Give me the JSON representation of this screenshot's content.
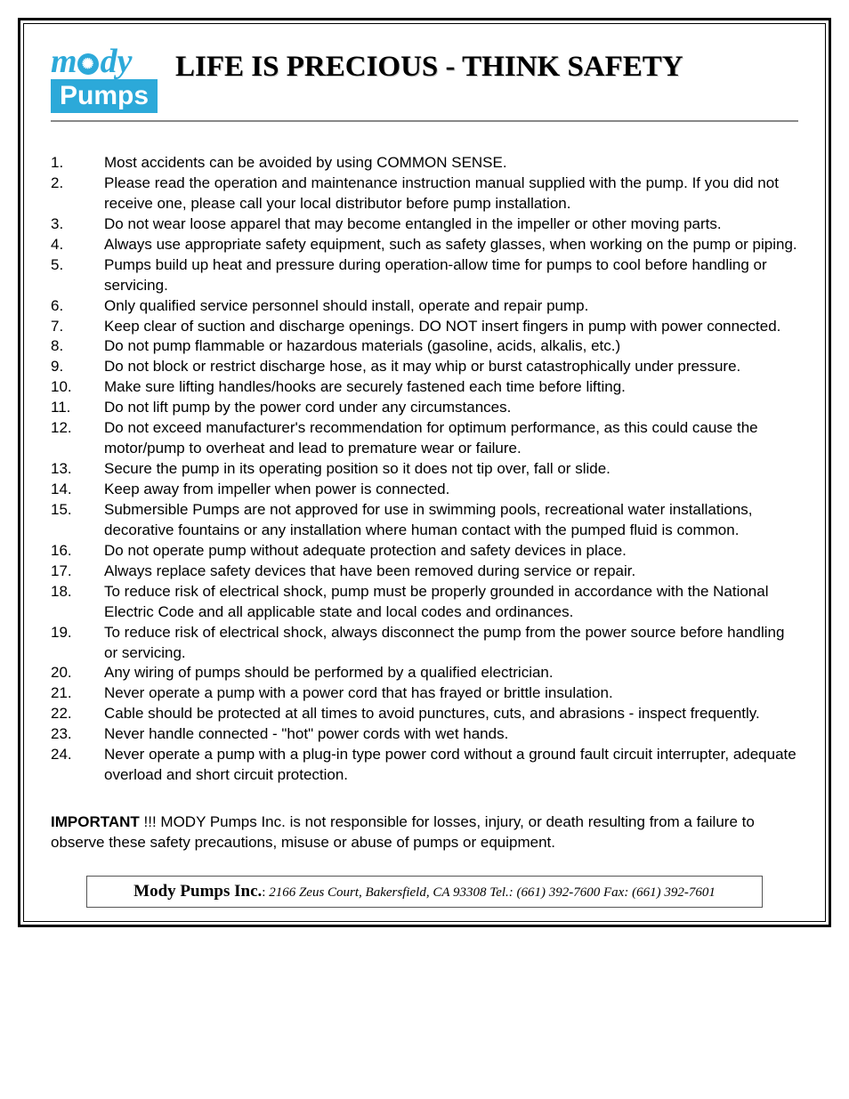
{
  "logo": {
    "top_m": "m",
    "top_dy": "dy",
    "bottom": "Pumps",
    "star_glyph": "✺",
    "brand_color": "#2ca9d9"
  },
  "title": "LIFE IS PRECIOUS - THINK SAFETY",
  "safety_items": [
    {
      "n": "1.",
      "text": "Most accidents can be avoided by using COMMON SENSE."
    },
    {
      "n": "2.",
      "text": "Please read the operation and maintenance instruction manual supplied with the pump. If you did not receive one, please call your local distributor before pump installation."
    },
    {
      "n": "3.",
      "text": "Do not wear loose apparel that may become entangled in the impeller or other moving parts."
    },
    {
      "n": "4.",
      "text": "Always use appropriate safety equipment, such as safety glasses, when working on the pump or piping."
    },
    {
      "n": "5.",
      "text": "Pumps build up heat and pressure during operation-allow time for pumps to cool before handling or servicing."
    },
    {
      "n": "6.",
      "text": "Only qualified service personnel should install, operate and repair pump."
    },
    {
      "n": "7.",
      "text": "Keep clear of suction and discharge openings. DO NOT insert fingers in pump with power connected."
    },
    {
      "n": "8.",
      "text": "Do not pump flammable or hazardous materials (gasoline, acids, alkalis, etc.)"
    },
    {
      "n": "9.",
      "text": "Do not block or restrict discharge hose, as it may whip or burst catastrophically under pressure."
    },
    {
      "n": "10.",
      "text": "Make sure lifting handles/hooks are securely fastened each time before lifting."
    },
    {
      "n": "11.",
      "text": "Do not lift pump by the power cord under any circumstances."
    },
    {
      "n": "12.",
      "text": "Do not exceed manufacturer's recommendation for optimum performance, as this could cause the motor/pump to overheat and lead to premature wear or failure."
    },
    {
      "n": "13.",
      "text": "Secure the pump in its operating position so it does not tip over, fall or slide."
    },
    {
      "n": "14.",
      "text": "Keep away from impeller when power is connected."
    },
    {
      "n": "15.",
      "text": "Submersible Pumps are not approved for use in swimming pools, recreational water installations, decorative fountains or any installation where human contact with the pumped fluid is common."
    },
    {
      "n": "16.",
      "text": "Do not operate pump without adequate protection and safety devices in place."
    },
    {
      "n": "17.",
      "text": "Always replace safety devices that have been removed during service or repair."
    },
    {
      "n": "18.",
      "text": "To reduce risk of electrical shock, pump must be properly grounded in accordance with the National Electric Code and all applicable state and local codes and ordinances."
    },
    {
      "n": "19.",
      "text": "To reduce risk of electrical shock, always disconnect the pump from the power source before handling or servicing."
    },
    {
      "n": "20.",
      "text": "Any wiring of pumps should be performed by a qualified electrician."
    },
    {
      "n": "21.",
      "text": "Never operate a pump with a power cord that has frayed or brittle insulation."
    },
    {
      "n": "22.",
      "text": "Cable should be protected at all times to avoid punctures, cuts, and abrasions - inspect frequently."
    },
    {
      "n": "23.",
      "text": "Never handle connected - \"hot\" power cords with wet hands."
    },
    {
      "n": "24.",
      "text": "Never operate a pump with a plug-in type power cord without a ground fault circuit interrupter, adequate overload and short circuit protection."
    }
  ],
  "important": {
    "label": "IMPORTANT",
    "text": " !!! MODY Pumps Inc. is not responsible for losses, injury, or death resulting from a failure to observe these safety precautions, misuse or abuse of pumps or equipment."
  },
  "footer": {
    "company": "Mody Pumps Inc.",
    "separator": ": ",
    "address": "2166 Zeus Court, Bakersfield, CA 93308 Tel.: (661) 392-7600   Fax: (661) 392-7601"
  },
  "colors": {
    "text": "#000000",
    "background": "#ffffff",
    "border": "#000000",
    "header_rule": "#888888"
  },
  "typography": {
    "title_font": "Times New Roman",
    "body_font": "Arial",
    "title_size_pt": 24,
    "body_size_pt": 13
  }
}
